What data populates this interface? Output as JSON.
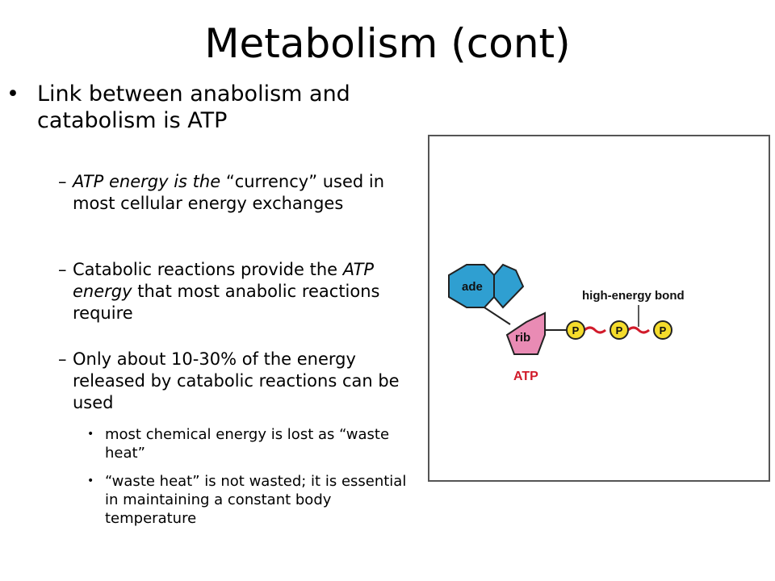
{
  "slide": {
    "title": "Metabolism (cont)",
    "bullet_mark": "•",
    "main_point": "Link between anabolism and catabolism is ATP",
    "subpoints": [
      {
        "dash": "–",
        "italic_start": "ATP energy is the",
        "rest": " “currency” used in most cellular energy exchanges"
      },
      {
        "dash": "–",
        "prefix": "Catabolic reactions provide the ",
        "italic": "ATP energy",
        "suffix": " that most anabolic reactions require"
      },
      {
        "dash": "–",
        "text": "Only about 10-30% of the energy released by catabolic reactions can be used"
      }
    ],
    "details": [
      {
        "dot": "•",
        "text": "most chemical energy is lost as “waste heat”"
      },
      {
        "dot": "•",
        "text": "“waste heat” is not wasted; it is essential in maintaining a constant body temperature"
      }
    ]
  },
  "figure": {
    "adenine_label": "ade",
    "ribose_label": "rib",
    "phosphate_label": "P",
    "bond_label": "high-energy bond",
    "molecule_label": "ATP",
    "colors": {
      "adenine": "#2f9fd1",
      "ribose": "#e98bb4",
      "phosphate": "#f5dc2b",
      "bond": "#d11a2a",
      "atp_label": "#d11a2a"
    }
  }
}
